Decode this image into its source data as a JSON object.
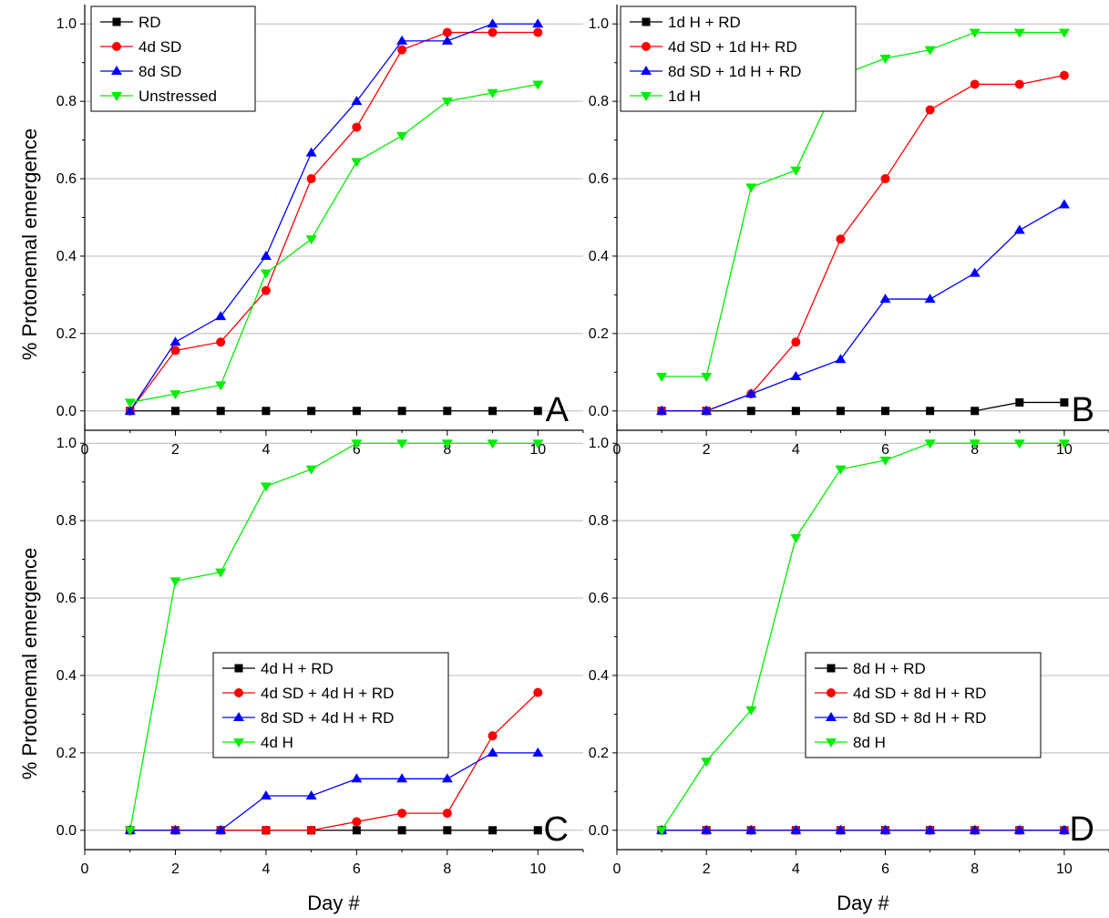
{
  "figure": {
    "xlabel": "Day #",
    "ylabel": "% Protonemal emergence"
  },
  "chart_data": [
    {
      "type": "line",
      "panel": "A",
      "xlim": [
        0,
        11
      ],
      "ylim": [
        -0.05,
        1.05
      ],
      "xticks": [
        0,
        2,
        4,
        6,
        8,
        10
      ],
      "yticks": [
        0.0,
        0.2,
        0.4,
        0.6,
        0.8,
        1.0
      ],
      "grid": "horizontal",
      "legend_position": "top-left",
      "x": [
        1,
        2,
        3,
        4,
        5,
        6,
        7,
        8,
        9,
        10
      ],
      "series": [
        {
          "name": "RD",
          "color": "#000000",
          "marker": "square",
          "values": [
            0,
            0,
            0,
            0,
            0,
            0,
            0,
            0,
            0,
            0
          ]
        },
        {
          "name": "4d SD",
          "color": "#ff0000",
          "marker": "circle",
          "values": [
            0,
            0.156,
            0.178,
            0.311,
            0.6,
            0.733,
            0.933,
            0.978,
            0.978,
            0.978
          ]
        },
        {
          "name": "8d SD",
          "color": "#0000ff",
          "marker": "triangle-up",
          "values": [
            0,
            0.178,
            0.244,
            0.4,
            0.667,
            0.8,
            0.956,
            0.956,
            1.0,
            1.0
          ]
        },
        {
          "name": "Unstressed",
          "color": "#00ee00",
          "marker": "triangle-down",
          "values": [
            0.022,
            0.044,
            0.067,
            0.356,
            0.444,
            0.644,
            0.711,
            0.8,
            0.822,
            0.844
          ]
        }
      ]
    },
    {
      "type": "line",
      "panel": "B",
      "xlim": [
        0,
        11
      ],
      "ylim": [
        -0.05,
        1.05
      ],
      "xticks": [
        0,
        2,
        4,
        6,
        8,
        10
      ],
      "yticks": [
        0.0,
        0.2,
        0.4,
        0.6,
        0.8,
        1.0
      ],
      "grid": "horizontal",
      "legend_position": "top-left",
      "x": [
        1,
        2,
        3,
        4,
        5,
        6,
        7,
        8,
        9,
        10
      ],
      "series": [
        {
          "name": "1d H + RD",
          "color": "#000000",
          "marker": "square",
          "values": [
            0,
            0,
            0,
            0,
            0,
            0,
            0,
            0,
            0.022,
            0.022
          ]
        },
        {
          "name": "4d SD + 1d H+ RD",
          "color": "#ff0000",
          "marker": "circle",
          "values": [
            0,
            0,
            0.044,
            0.178,
            0.444,
            0.6,
            0.778,
            0.844,
            0.844,
            0.867
          ]
        },
        {
          "name": "8d SD + 1d H + RD",
          "color": "#0000ff",
          "marker": "triangle-up",
          "values": [
            0,
            0,
            0.044,
            0.089,
            0.133,
            0.289,
            0.289,
            0.356,
            0.467,
            0.533
          ]
        },
        {
          "name": "1d H",
          "color": "#00ee00",
          "marker": "triangle-down",
          "values": [
            0.089,
            0.089,
            0.578,
            0.622,
            0.867,
            0.911,
            0.933,
            0.978,
            0.978,
            0.978
          ]
        }
      ]
    },
    {
      "type": "line",
      "panel": "C",
      "xlim": [
        0,
        11
      ],
      "ylim": [
        -0.05,
        1.05
      ],
      "xticks": [
        0,
        2,
        4,
        6,
        8,
        10
      ],
      "yticks": [
        0.0,
        0.2,
        0.4,
        0.6,
        0.8,
        1.0
      ],
      "grid": "horizontal",
      "legend_position": "center-right",
      "x": [
        1,
        2,
        3,
        4,
        5,
        6,
        7,
        8,
        9,
        10
      ],
      "series": [
        {
          "name": "4d H + RD",
          "color": "#000000",
          "marker": "square",
          "values": [
            0,
            0,
            0,
            0,
            0,
            0,
            0,
            0,
            0,
            0
          ]
        },
        {
          "name": "4d SD + 4d H + RD",
          "color": "#ff0000",
          "marker": "circle",
          "values": [
            0,
            0,
            0,
            0,
            0,
            0.022,
            0.044,
            0.044,
            0.244,
            0.356
          ]
        },
        {
          "name": "8d SD + 4d H + RD",
          "color": "#0000ff",
          "marker": "triangle-up",
          "values": [
            0,
            0,
            0,
            0.089,
            0.089,
            0.133,
            0.133,
            0.133,
            0.2,
            0.2
          ]
        },
        {
          "name": "4d H",
          "color": "#00ee00",
          "marker": "triangle-down",
          "values": [
            0,
            0.644,
            0.667,
            0.889,
            0.933,
            1.0,
            1.0,
            1.0,
            1.0,
            1.0
          ]
        }
      ]
    },
    {
      "type": "line",
      "panel": "D",
      "xlim": [
        0,
        11
      ],
      "ylim": [
        -0.05,
        1.05
      ],
      "xticks": [
        0,
        2,
        4,
        6,
        8,
        10
      ],
      "yticks": [
        0.0,
        0.2,
        0.4,
        0.6,
        0.8,
        1.0
      ],
      "grid": "horizontal",
      "legend_position": "center-right",
      "x": [
        1,
        2,
        3,
        4,
        5,
        6,
        7,
        8,
        9,
        10
      ],
      "series": [
        {
          "name": "8d H + RD",
          "color": "#000000",
          "marker": "square",
          "values": [
            0,
            0,
            0,
            0,
            0,
            0,
            0,
            0,
            0,
            0
          ]
        },
        {
          "name": "4d SD + 8d H + RD",
          "color": "#ff0000",
          "marker": "circle",
          "values": [
            0,
            0,
            0,
            0,
            0,
            0,
            0,
            0,
            0,
            0
          ]
        },
        {
          "name": "8d SD + 8d H + RD",
          "color": "#0000ff",
          "marker": "triangle-up",
          "values": [
            0,
            0,
            0,
            0,
            0,
            0,
            0,
            0,
            0,
            0
          ]
        },
        {
          "name": "8d H",
          "color": "#00ee00",
          "marker": "triangle-down",
          "values": [
            0,
            0.178,
            0.311,
            0.756,
            0.933,
            0.956,
            1.0,
            1.0,
            1.0,
            1.0
          ]
        }
      ]
    }
  ]
}
